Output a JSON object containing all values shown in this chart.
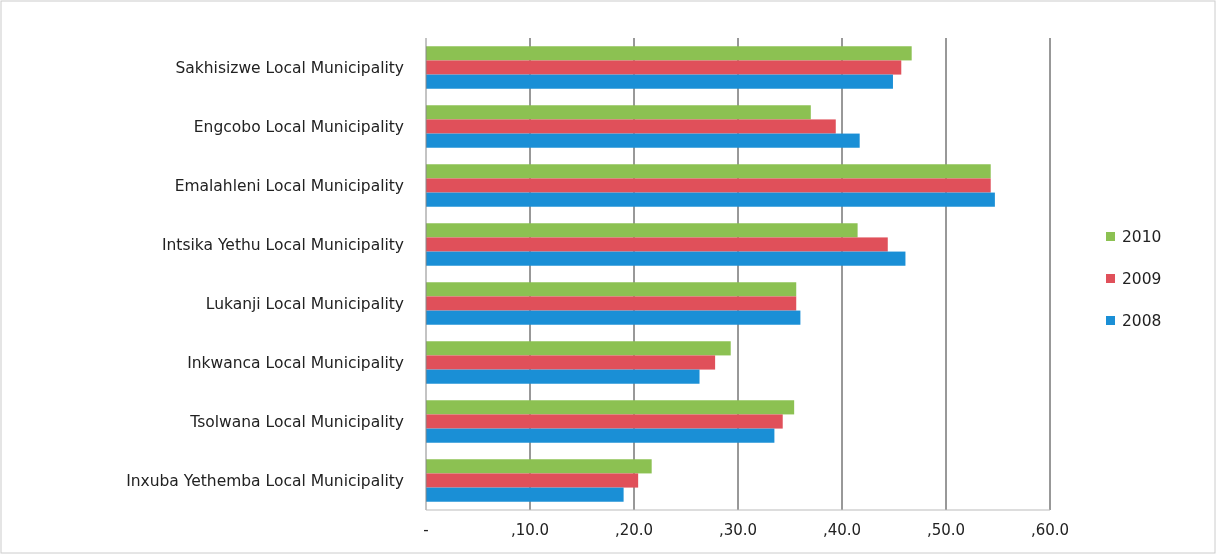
{
  "chart_data": {
    "type": "bar",
    "orientation": "horizontal",
    "categories": [
      "Sakhisizwe Local Municipality",
      "Engcobo Local Municipality",
      "Emalahleni Local Municipality",
      "Intsika Yethu Local Municipality",
      "Lukanji Local Municipality",
      "Inkwanca Local Municipality",
      "Tsolwana Local Municipality",
      "Inxuba Yethemba Local Municipality"
    ],
    "series": [
      {
        "name": "2010",
        "color": "#8cc152",
        "values": [
          46.7,
          37.0,
          54.3,
          41.5,
          35.6,
          29.3,
          35.4,
          21.7
        ]
      },
      {
        "name": "2009",
        "color": "#e0505a",
        "values": [
          45.7,
          39.4,
          54.3,
          44.4,
          35.6,
          27.8,
          34.3,
          20.4
        ]
      },
      {
        "name": "2008",
        "color": "#1a8fd6",
        "values": [
          44.9,
          41.7,
          54.7,
          46.1,
          36.0,
          26.3,
          33.5,
          19.0
        ]
      }
    ],
    "xlim": [
      0,
      60
    ],
    "xticks": [
      {
        "value": 0,
        "label": "-"
      },
      {
        "value": 10,
        "label": ",10.0"
      },
      {
        "value": 20,
        "label": ",20.0"
      },
      {
        "value": 30,
        "label": ",30.0"
      },
      {
        "value": 40,
        "label": ",40.0"
      },
      {
        "value": 50,
        "label": ",50.0"
      },
      {
        "value": 60,
        "label": ",60.0"
      }
    ],
    "grid": "x",
    "legend": "right"
  }
}
